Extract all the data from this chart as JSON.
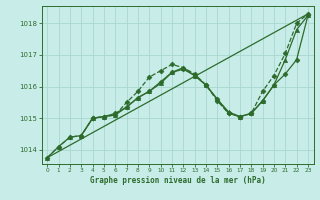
{
  "background_color": "#c8ede8",
  "grid_color": "#a8d8d0",
  "line_color": "#2d6b2d",
  "title": "Graphe pression niveau de la mer (hPa)",
  "xlim": [
    -0.5,
    23.5
  ],
  "ylim": [
    1013.55,
    1018.55
  ],
  "yticks": [
    1014,
    1015,
    1016,
    1017,
    1018
  ],
  "xticks": [
    0,
    1,
    2,
    3,
    4,
    5,
    6,
    7,
    8,
    9,
    10,
    11,
    12,
    13,
    14,
    15,
    16,
    17,
    18,
    19,
    20,
    21,
    22,
    23
  ],
  "series": [
    {
      "x": [
        0,
        1,
        2,
        3,
        4,
        5,
        6,
        7,
        8,
        9,
        10,
        11,
        12,
        13,
        14,
        15,
        16,
        17,
        18,
        19,
        20,
        21,
        22,
        23
      ],
      "y": [
        1013.75,
        1014.1,
        1014.4,
        1014.45,
        1015.0,
        1015.05,
        1015.1,
        1015.5,
        1015.85,
        1016.3,
        1016.5,
        1016.7,
        1016.6,
        1016.4,
        1016.05,
        1015.55,
        1015.15,
        1015.05,
        1015.15,
        1015.85,
        1016.35,
        1017.05,
        1018.0,
        1018.3
      ],
      "marker": "D",
      "markersize": 2.5,
      "linewidth": 0.9,
      "linestyle": "--"
    },
    {
      "x": [
        0,
        23
      ],
      "y": [
        1013.75,
        1018.3
      ],
      "marker": null,
      "markersize": 0,
      "linewidth": 0.9,
      "linestyle": "-"
    },
    {
      "x": [
        0,
        1,
        2,
        3,
        4,
        5,
        6,
        7,
        8,
        9,
        10,
        11,
        12,
        13,
        14,
        15,
        16,
        17,
        18,
        19,
        20,
        21,
        22,
        23
      ],
      "y": [
        1013.75,
        1014.1,
        1014.4,
        1014.45,
        1015.0,
        1015.05,
        1015.1,
        1015.35,
        1015.65,
        1015.85,
        1016.1,
        1016.45,
        1016.6,
        1016.35,
        1016.05,
        1015.6,
        1015.2,
        1015.05,
        1015.15,
        1015.55,
        1016.05,
        1016.85,
        1017.8,
        1018.25
      ],
      "marker": "^",
      "markersize": 3,
      "linewidth": 0.9,
      "linestyle": "-"
    },
    {
      "x": [
        3,
        4,
        5,
        6,
        7,
        8,
        9,
        10,
        11,
        12,
        13,
        14,
        15,
        16,
        17,
        18,
        19,
        20,
        21,
        22,
        23
      ],
      "y": [
        1014.45,
        1015.0,
        1015.05,
        1015.15,
        1015.35,
        1015.65,
        1015.85,
        1016.15,
        1016.45,
        1016.55,
        1016.35,
        1016.05,
        1015.6,
        1015.15,
        1015.05,
        1015.15,
        1015.55,
        1016.05,
        1016.4,
        1016.85,
        1018.25
      ],
      "marker": "D",
      "markersize": 2.5,
      "linewidth": 0.9,
      "linestyle": "-"
    }
  ]
}
